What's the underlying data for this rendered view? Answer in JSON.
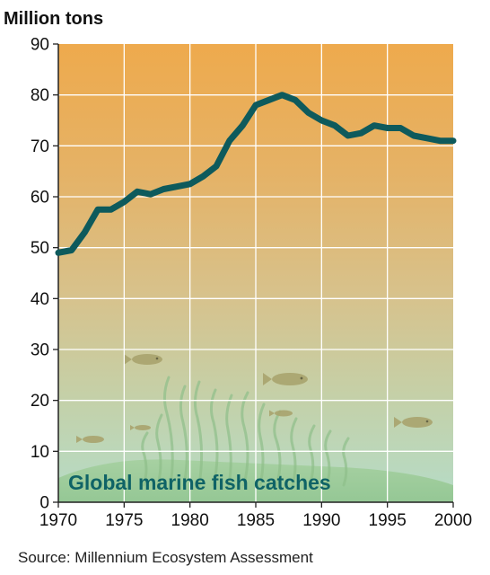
{
  "chart_data": {
    "type": "line",
    "title": "Global marine fish catches",
    "ylabel": "Million tons",
    "xlabel": "",
    "source": "Source: Millennium Ecosystem Assessment",
    "xlim": [
      1970,
      2000
    ],
    "ylim": [
      0,
      90
    ],
    "x_ticks": [
      "1970",
      "1975",
      "1980",
      "1985",
      "1990",
      "1995",
      "2000"
    ],
    "y_ticks": [
      "0",
      "10",
      "20",
      "30",
      "40",
      "50",
      "60",
      "70",
      "80",
      "90"
    ],
    "grid": true,
    "series": [
      {
        "x": [
          1970,
          1971,
          1972,
          1973,
          1974,
          1975,
          1976,
          1977,
          1978,
          1979,
          1980,
          1981,
          1982,
          1983,
          1984,
          1985,
          1986,
          1987,
          1988,
          1989,
          1990,
          1991,
          1992,
          1993,
          1994,
          1995,
          1996,
          1997,
          1998,
          1999,
          2000
        ],
        "values": [
          49,
          49.5,
          53,
          57.5,
          57.5,
          59,
          61,
          60.5,
          61.5,
          62,
          62.5,
          64,
          66,
          71,
          74,
          78,
          79,
          80,
          79,
          76.5,
          75,
          74,
          72,
          72.5,
          74,
          73.5,
          73.5,
          72,
          71.5,
          71,
          71
        ]
      }
    ],
    "colors": {
      "line": "#0e5a5c",
      "background_top": "#eeaa4d",
      "background_bottom": "#b7dccb",
      "title": "#0f6366",
      "grid": "#ffffff"
    }
  }
}
